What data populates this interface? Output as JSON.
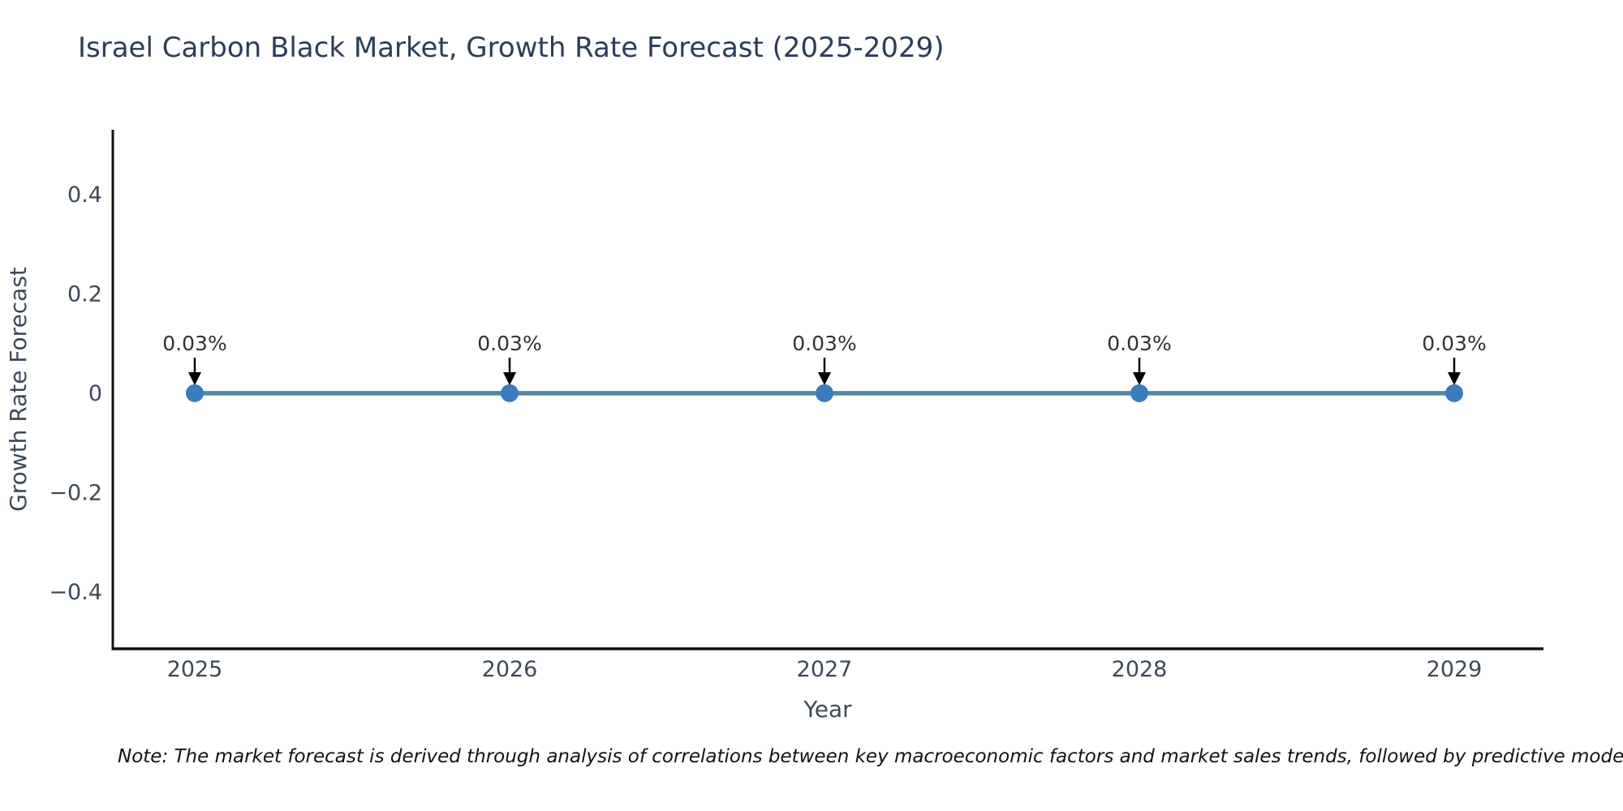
{
  "title": "Israel Carbon Black Market, Growth Rate Forecast (2025-2029)",
  "note": "Note: The market forecast is derived through analysis of correlations between key macroeconomic factors and market sales trends, followed by predictive modeling to project future sales",
  "chart_data": {
    "type": "line",
    "title": "Israel Carbon Black Market, Growth Rate Forecast (2025-2029)",
    "xlabel": "Year",
    "ylabel": "Growth Rate Forecast",
    "x": [
      2025,
      2026,
      2027,
      2028,
      2029
    ],
    "series": [
      {
        "name": "Growth Rate Forecast",
        "values_percent": [
          0.03,
          0.03,
          0.03,
          0.03,
          0.03
        ]
      }
    ],
    "value_labels": [
      "0.03%",
      "0.03%",
      "0.03%",
      "0.03%",
      "0.03%"
    ],
    "xtick_labels": [
      "2025",
      "2026",
      "2027",
      "2028",
      "2029"
    ],
    "ytick_values": [
      0.4,
      0.2,
      0,
      -0.2,
      -0.4
    ],
    "ytick_labels": [
      "0.4",
      "0.2",
      "0",
      "−0.2",
      "−0.4"
    ],
    "ylim": [
      -0.5,
      0.5
    ],
    "grid": false,
    "legend": "none",
    "line_color": "#5584a7",
    "marker_color": "#3a7cbe",
    "arrow_color": "#000000",
    "spine_color": "#0f1011"
  }
}
